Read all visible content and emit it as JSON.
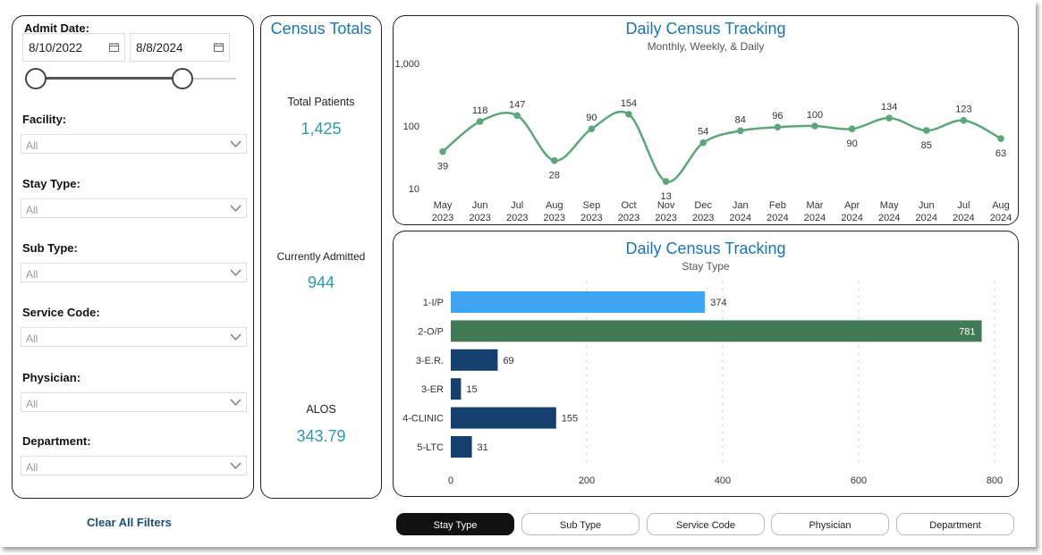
{
  "filters": {
    "admit_date_label": "Admit Date:",
    "date_start": "8/10/2022",
    "date_end": "8/8/2024",
    "slider": {
      "start_fraction": 0.0,
      "end_fraction": 0.73
    },
    "calendar_icon": "calendar-icon",
    "dropdown_icon": "chevron-down-icon",
    "items": [
      {
        "label": "Facility:",
        "value": "All"
      },
      {
        "label": "Stay Type:",
        "value": "All"
      },
      {
        "label": "Sub Type:",
        "value": "All"
      },
      {
        "label": "Service Code:",
        "value": "All"
      },
      {
        "label": "Physician:",
        "value": "All"
      },
      {
        "label": "Department:",
        "value": "All"
      }
    ],
    "clear_all": "Clear All Filters"
  },
  "totals": {
    "title": "Census Totals",
    "total_patients_label": "Total Patients",
    "total_patients_value": "1,425",
    "currently_admitted_label": "Currently Admitted",
    "currently_admitted_value": "944",
    "alos_label": "ALOS",
    "alos_value": "343.79"
  },
  "line_chart": {
    "title": "Daily Census Tracking",
    "subtitle": "Monthly, Weekly, & Daily"
  },
  "bar_chart": {
    "title": "Daily Census Tracking",
    "subtitle": "Stay Type"
  },
  "tabs": [
    {
      "label": "Stay Type",
      "active": true
    },
    {
      "label": "Sub Type",
      "active": false
    },
    {
      "label": "Service Code",
      "active": false
    },
    {
      "label": "Physician",
      "active": false
    },
    {
      "label": "Department",
      "active": false
    }
  ],
  "chart_data": [
    {
      "type": "line",
      "title": "Daily Census Tracking",
      "subtitle": "Monthly, Weekly, & Daily",
      "y_scale": "log",
      "ylim": [
        10,
        1000
      ],
      "y_ticks": [
        "10",
        "100",
        "1,000"
      ],
      "categories": [
        "May 2023",
        "Jun 2023",
        "Jul 2023",
        "Aug 2023",
        "Sep 2023",
        "Oct 2023",
        "Nov 2023",
        "Dec 2023",
        "Jan 2024",
        "Feb 2024",
        "Mar 2024",
        "Apr 2024",
        "May 2024",
        "Jun 2024",
        "Jul 2024",
        "Aug 2024"
      ],
      "values": [
        39,
        118,
        147,
        28,
        90,
        154,
        13,
        54,
        84,
        96,
        100,
        90,
        134,
        85,
        123,
        63
      ],
      "color": "#5aa878",
      "grid": false
    },
    {
      "type": "bar",
      "orientation": "horizontal",
      "title": "Daily Census Tracking",
      "subtitle": "Stay Type",
      "categories": [
        "1-I/P",
        "2-O/P",
        "3-E.R.",
        "3-ER",
        "4-CLINIC",
        "5-LTC"
      ],
      "values": [
        374,
        781,
        69,
        15,
        155,
        31
      ],
      "colors": [
        "#3fa4f2",
        "#427a55",
        "#153f6e",
        "#153f6e",
        "#153f6e",
        "#153f6e"
      ],
      "xlim": [
        0,
        800
      ],
      "x_ticks": [
        0,
        200,
        400,
        600,
        800
      ],
      "grid": true
    }
  ]
}
